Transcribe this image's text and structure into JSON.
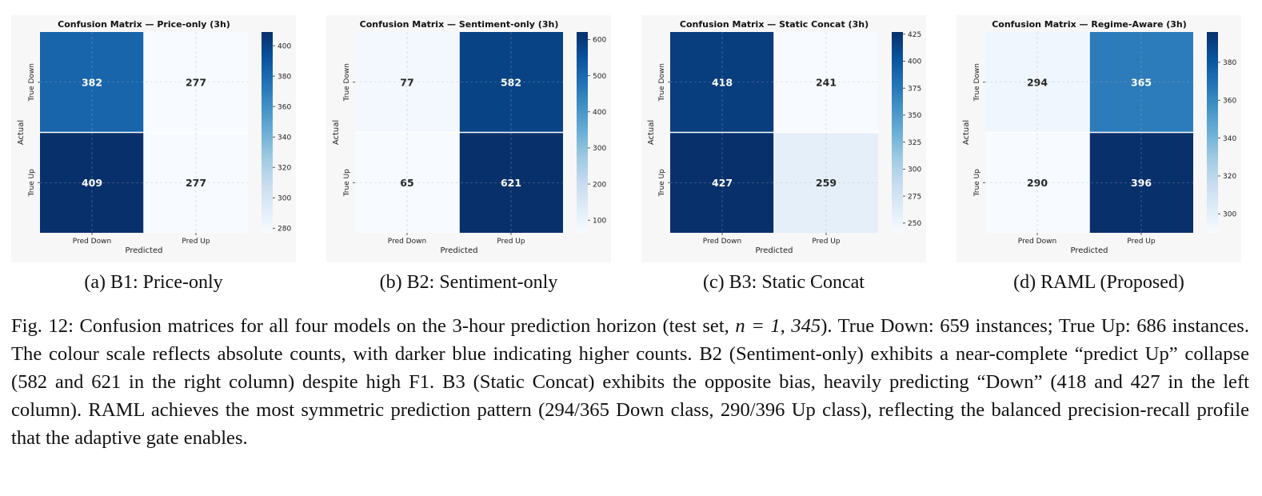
{
  "panels": [
    {
      "chart_data": {
        "type": "heatmap",
        "title": "Confusion Matrix — Price-only (3h)",
        "xlabel": "Predicted",
        "ylabel": "Actual",
        "col_labels": [
          "Pred Down",
          "Pred Up"
        ],
        "row_labels": [
          "True Down",
          "True Up"
        ],
        "values": [
          [
            382,
            277
          ],
          [
            409,
            277
          ]
        ],
        "colorbar": {
          "min": 277,
          "max": 409,
          "ticks": [
            280,
            300,
            320,
            340,
            360,
            380,
            400
          ]
        },
        "colormap": "Blues",
        "grid": true
      },
      "subcaption": "(a) B1: Price-only"
    },
    {
      "chart_data": {
        "type": "heatmap",
        "title": "Confusion Matrix — Sentiment-only (3h)",
        "xlabel": "Predicted",
        "ylabel": "Actual",
        "col_labels": [
          "Pred Down",
          "Pred Up"
        ],
        "row_labels": [
          "True Down",
          "True Up"
        ],
        "values": [
          [
            77,
            582
          ],
          [
            65,
            621
          ]
        ],
        "colorbar": {
          "min": 65,
          "max": 621,
          "ticks": [
            100,
            200,
            300,
            400,
            500,
            600
          ]
        },
        "colormap": "Blues",
        "grid": true
      },
      "subcaption": "(b) B2: Sentiment-only"
    },
    {
      "chart_data": {
        "type": "heatmap",
        "title": "Confusion Matrix — Static Concat (3h)",
        "xlabel": "Predicted",
        "ylabel": "Actual",
        "col_labels": [
          "Pred Down",
          "Pred Up"
        ],
        "row_labels": [
          "True Down",
          "True Up"
        ],
        "values": [
          [
            418,
            241
          ],
          [
            427,
            259
          ]
        ],
        "colorbar": {
          "min": 241,
          "max": 427,
          "ticks": [
            250,
            275,
            300,
            325,
            350,
            375,
            400,
            425
          ]
        },
        "colormap": "Blues",
        "grid": true
      },
      "subcaption": "(c) B3: Static Concat"
    },
    {
      "chart_data": {
        "type": "heatmap",
        "title": "Confusion Matrix — Regime-Aware (3h)",
        "xlabel": "Predicted",
        "ylabel": "Actual",
        "col_labels": [
          "Pred Down",
          "Pred Up"
        ],
        "row_labels": [
          "True Down",
          "True Up"
        ],
        "values": [
          [
            294,
            365
          ],
          [
            290,
            396
          ]
        ],
        "colorbar": {
          "min": 290,
          "max": 396,
          "ticks": [
            300,
            320,
            340,
            360,
            380
          ]
        },
        "colormap": "Blues",
        "grid": true
      },
      "subcaption": "(d) RAML (Proposed)"
    }
  ],
  "caption": {
    "part1": "Fig. 12: Confusion matrices for all four models on the 3-hour prediction horizon (test set, ",
    "math": "n = 1, 345",
    "part2": "). True Down: 659 instances; True Up: 686 instances. The colour scale reflects absolute counts, with darker blue indicating higher counts. B2 (Sentiment-only) exhibits a near-complete “predict Up” collapse (582 and 621 in the right column) despite high F1. B3 (Static Concat) exhibits the opposite bias, heavily predicting “Down” (418 and 427 in the left column). RAML achieves the most symmetric prediction pattern (294/365 Down class, 290/396 Up class), reflecting the balanced precision-recall profile that the adaptive gate enables."
  }
}
